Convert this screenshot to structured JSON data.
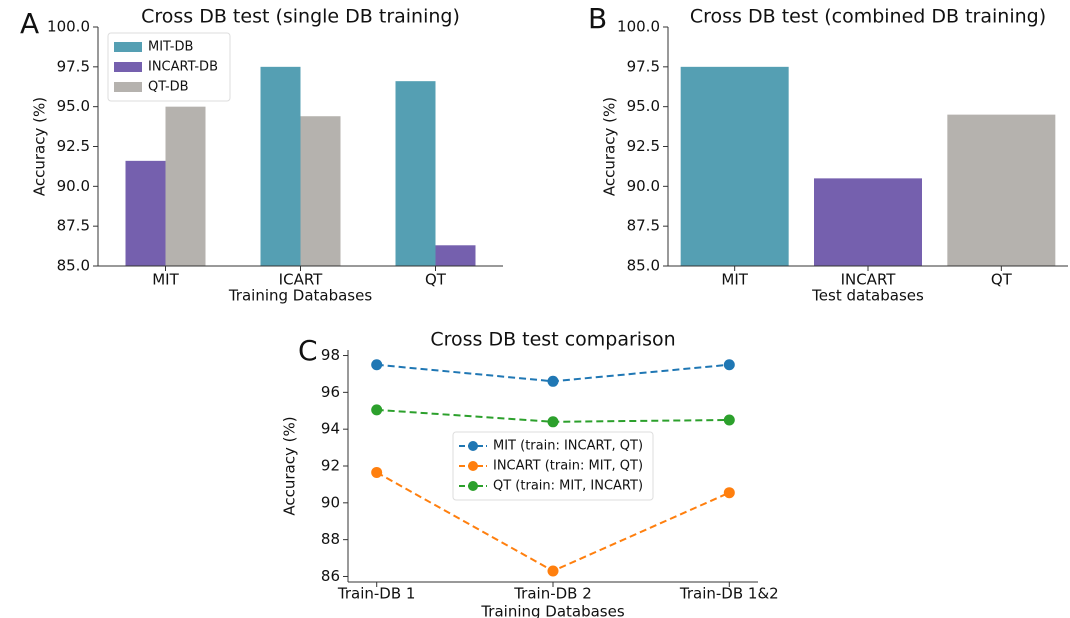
{
  "chart_data": [
    {
      "type": "bar",
      "panel_label": "A",
      "title": "Cross DB test (single DB training)",
      "x_label": "Training Databases",
      "y_label": "Accuracy (%)",
      "categories": [
        "MIT",
        "ICART",
        "QT"
      ],
      "series": [
        {
          "name": "MIT-DB",
          "color": "#559fb3",
          "values": [
            null,
            97.5,
            96.6
          ]
        },
        {
          "name": "INCART-DB",
          "color": "#7560ae",
          "values": [
            91.6,
            null,
            86.3
          ]
        },
        {
          "name": "QT-DB",
          "color": "#b5b2ae",
          "values": [
            95.0,
            94.4,
            null
          ]
        }
      ],
      "ylim": [
        85,
        100
      ],
      "yticks": [
        {
          "value": 85,
          "label": "85.0"
        },
        87.5,
        {
          "value": 90,
          "label": "90.0"
        },
        92.5,
        {
          "value": 95,
          "label": "95.0"
        },
        97.5,
        {
          "value": 100,
          "label": "100.0"
        }
      ],
      "legend": "upper left"
    },
    {
      "type": "bar",
      "panel_label": "B",
      "title": "Cross DB test (combined DB training)",
      "x_label": "Test databases",
      "y_label": "Accuracy (%)",
      "categories": [
        "MIT",
        "INCART",
        "QT"
      ],
      "values": [
        97.5,
        90.5,
        94.5
      ],
      "colors": [
        "#559fb3",
        "#7560ae",
        "#b5b2ae"
      ],
      "ylim": [
        85,
        100
      ],
      "yticks": [
        {
          "value": 85,
          "label": "85.0"
        },
        87.5,
        {
          "value": 90,
          "label": "90.0"
        },
        92.5,
        {
          "value": 95,
          "label": "95.0"
        },
        97.5,
        {
          "value": 100,
          "label": "100.0"
        }
      ]
    },
    {
      "type": "line",
      "panel_label": "C",
      "title": "Cross DB test comparison",
      "x_label": "Training Databases",
      "y_label": "Accuracy (%)",
      "categories": [
        "Train-DB 1",
        "Train-DB 2",
        "Train-DB 1&2"
      ],
      "series": [
        {
          "name": "MIT (train: INCART, QT)",
          "color": "#1f77b4",
          "values": [
            97.5,
            96.6,
            97.5
          ]
        },
        {
          "name": "INCART (train: MIT, QT)",
          "color": "#ff7f0e",
          "values": [
            91.65,
            86.3,
            90.55
          ]
        },
        {
          "name": "QT (train: MIT, INCART)",
          "color": "#2ca02c",
          "values": [
            95.05,
            94.4,
            94.5
          ]
        }
      ],
      "ylim": [
        85.7,
        98.3
      ],
      "yticks": [
        86,
        88,
        90,
        92,
        94,
        96,
        98
      ],
      "line_style": "dashed",
      "legend": "center"
    }
  ]
}
